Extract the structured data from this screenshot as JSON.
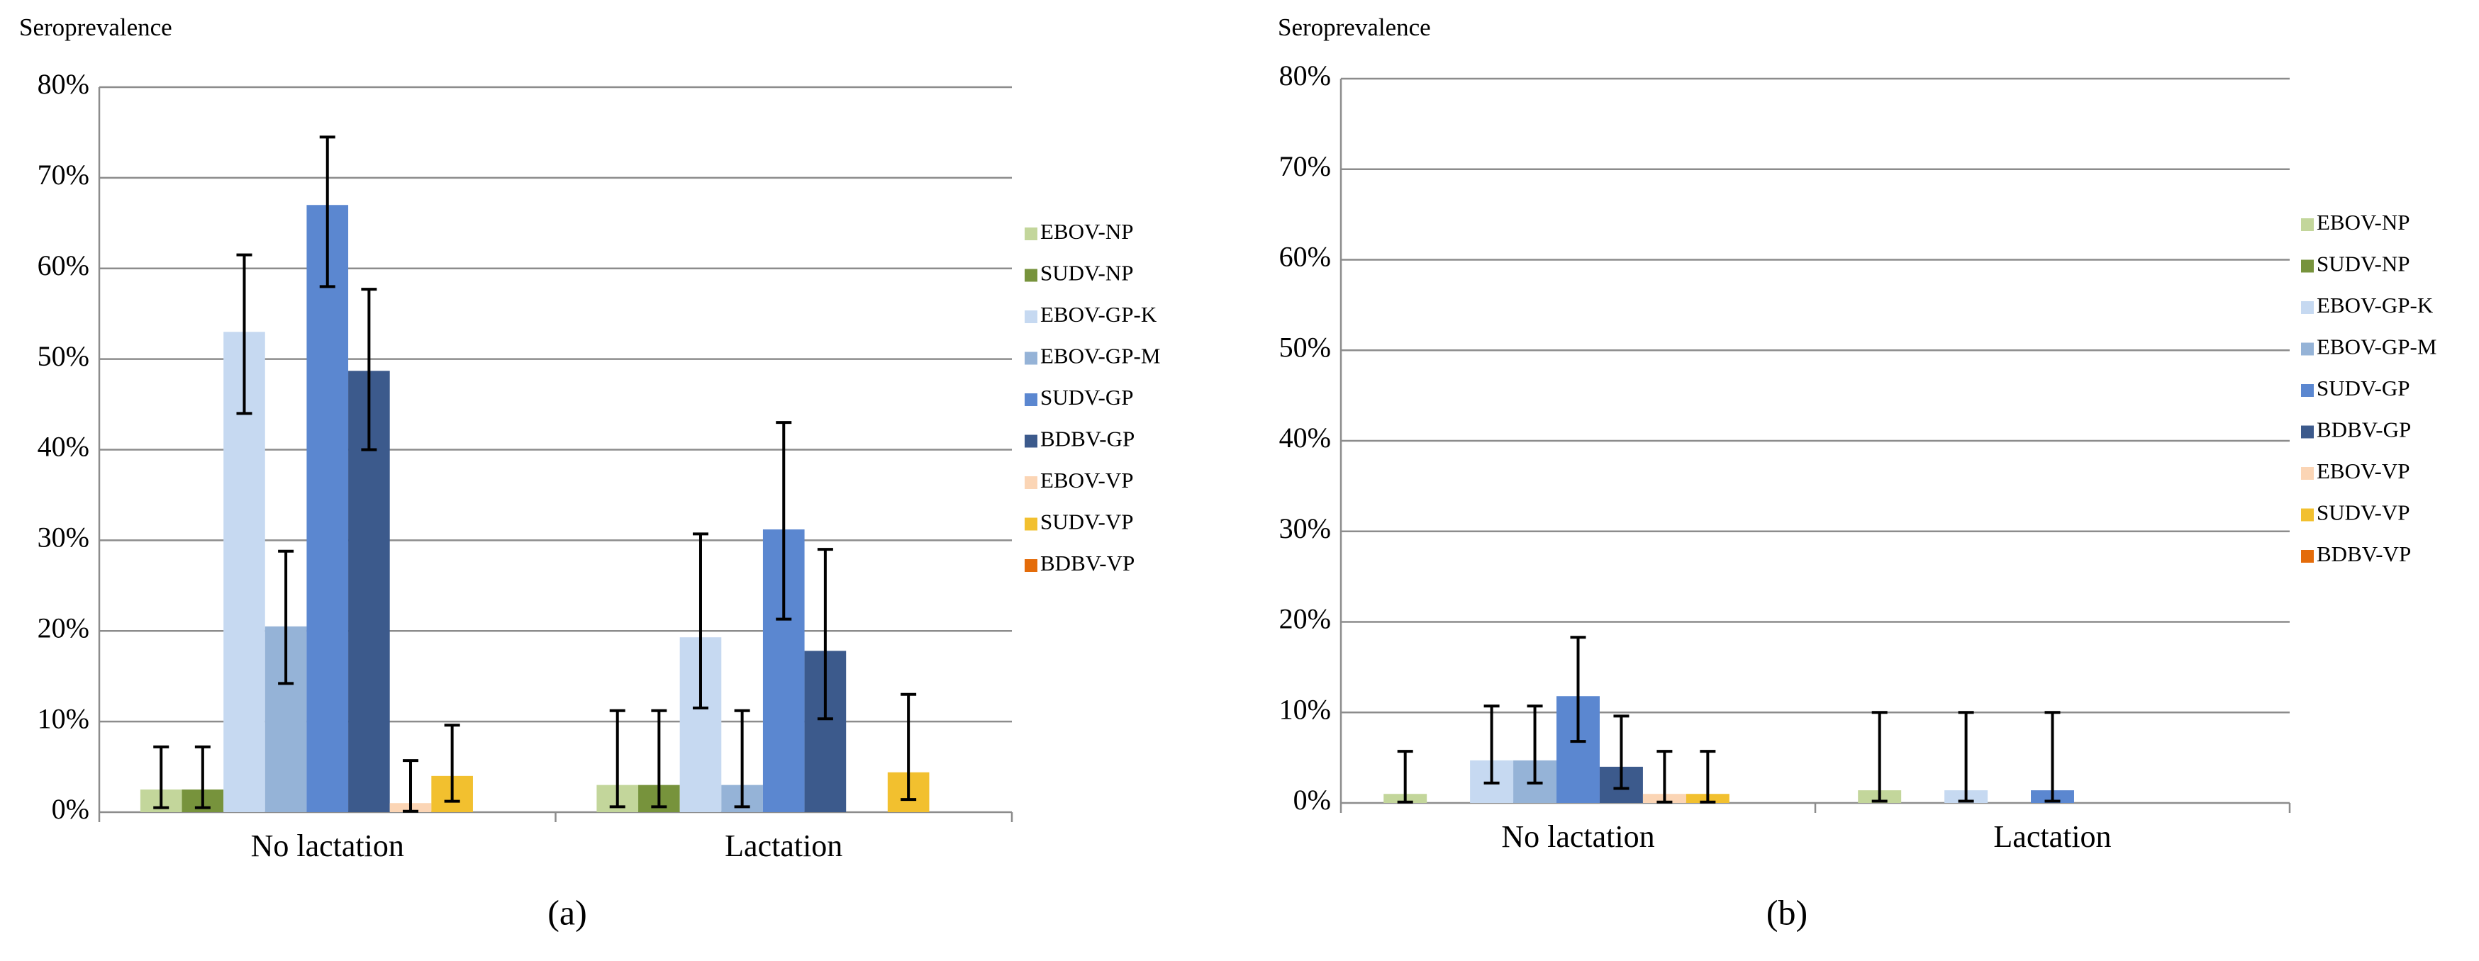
{
  "chart_data": [
    {
      "type": "bar",
      "label": "(a)",
      "y_label": "Seroprevalence",
      "categories": [
        "No lactation",
        "Lactation"
      ],
      "ylim": [
        0,
        80
      ],
      "yticks": [
        {
          "value": 0,
          "label": "0%"
        },
        {
          "value": 10,
          "label": "10%"
        },
        {
          "value": 20,
          "label": "20%"
        },
        {
          "value": 30,
          "label": "30%"
        },
        {
          "value": 40,
          "label": "40%"
        },
        {
          "value": 50,
          "label": "50%"
        },
        {
          "value": 60,
          "label": "60%"
        },
        {
          "value": 70,
          "label": "70%"
        },
        {
          "value": 80,
          "label": "80%"
        }
      ],
      "grid": true,
      "series": [
        {
          "name": "EBOV-NP",
          "color": "#c3d69b",
          "values": [
            2.5,
            3
          ],
          "lower": [
            0.5,
            0.6
          ],
          "upper": [
            7.2,
            11.2
          ]
        },
        {
          "name": "SUDV-NP",
          "color": "#77933c",
          "values": [
            2.5,
            3
          ],
          "lower": [
            0.5,
            0.6
          ],
          "upper": [
            7.2,
            11.2
          ]
        },
        {
          "name": "EBOV-GP-K",
          "color": "#c6d9f1",
          "values": [
            53,
            19.3
          ],
          "lower": [
            44,
            11.5
          ],
          "upper": [
            61.5,
            30.7
          ]
        },
        {
          "name": "EBOV-GP-M",
          "color": "#95b3d7",
          "values": [
            20.5,
            3
          ],
          "lower": [
            14.2,
            0.6
          ],
          "upper": [
            28.8,
            11.2
          ]
        },
        {
          "name": "SUDV-GP",
          "color": "#5b87d0",
          "values": [
            67,
            31.2
          ],
          "lower": [
            58,
            21.3
          ],
          "upper": [
            74.5,
            43
          ]
        },
        {
          "name": "BDBV-GP",
          "color": "#3c5a8c",
          "values": [
            48.7,
            17.8
          ],
          "lower": [
            40,
            10.3
          ],
          "upper": [
            57.7,
            29
          ]
        },
        {
          "name": "EBOV-VP",
          "color": "#fbd5b5",
          "values": [
            1,
            null
          ],
          "lower": [
            0.1,
            null
          ],
          "upper": [
            5.7,
            null
          ]
        },
        {
          "name": "SUDV-VP",
          "color": "#f2c02f",
          "values": [
            4,
            4.4
          ],
          "lower": [
            1.2,
            1.4
          ],
          "upper": [
            9.6,
            13
          ]
        },
        {
          "name": "BDBV-VP",
          "color": "#e46c0a",
          "values": [
            null,
            null
          ],
          "lower": [
            null,
            null
          ],
          "upper": [
            null,
            null
          ]
        }
      ]
    },
    {
      "type": "bar",
      "label": "(b)",
      "y_label": "Seroprevalence",
      "categories": [
        "No lactation",
        "Lactation"
      ],
      "ylim": [
        0,
        80
      ],
      "yticks": [
        {
          "value": 0,
          "label": "0%"
        },
        {
          "value": 10,
          "label": "10%"
        },
        {
          "value": 20,
          "label": "20%"
        },
        {
          "value": 30,
          "label": "30%"
        },
        {
          "value": 40,
          "label": "40%"
        },
        {
          "value": 50,
          "label": "50%"
        },
        {
          "value": 60,
          "label": "60%"
        },
        {
          "value": 70,
          "label": "70%"
        },
        {
          "value": 80,
          "label": "80%"
        }
      ],
      "grid": true,
      "series": [
        {
          "name": "EBOV-NP",
          "color": "#c3d69b",
          "values": [
            1,
            1.4
          ],
          "lower": [
            0.1,
            0.2
          ],
          "upper": [
            5.7,
            10
          ]
        },
        {
          "name": "SUDV-NP",
          "color": "#77933c",
          "values": [
            null,
            null
          ],
          "lower": [
            null,
            null
          ],
          "upper": [
            null,
            null
          ]
        },
        {
          "name": "EBOV-GP-K",
          "color": "#c6d9f1",
          "values": [
            4.7,
            1.4
          ],
          "lower": [
            2.2,
            0.2
          ],
          "upper": [
            10.7,
            10
          ]
        },
        {
          "name": "EBOV-GP-M",
          "color": "#95b3d7",
          "values": [
            4.7,
            null
          ],
          "lower": [
            2.2,
            null
          ],
          "upper": [
            10.7,
            null
          ]
        },
        {
          "name": "SUDV-GP",
          "color": "#5b87d0",
          "values": [
            11.8,
            1.4
          ],
          "lower": [
            6.8,
            0.2
          ],
          "upper": [
            18.3,
            10
          ]
        },
        {
          "name": "BDBV-GP",
          "color": "#3c5a8c",
          "values": [
            4,
            null
          ],
          "lower": [
            1.6,
            null
          ],
          "upper": [
            9.6,
            null
          ]
        },
        {
          "name": "EBOV-VP",
          "color": "#fbd5b5",
          "values": [
            1,
            null
          ],
          "lower": [
            0.1,
            null
          ],
          "upper": [
            5.7,
            null
          ]
        },
        {
          "name": "SUDV-VP",
          "color": "#f2c02f",
          "values": [
            1,
            null
          ],
          "lower": [
            0.1,
            null
          ],
          "upper": [
            5.7,
            null
          ]
        },
        {
          "name": "BDBV-VP",
          "color": "#e46c0a",
          "values": [
            null,
            null
          ],
          "lower": [
            null,
            null
          ],
          "upper": [
            null,
            null
          ]
        }
      ]
    }
  ]
}
